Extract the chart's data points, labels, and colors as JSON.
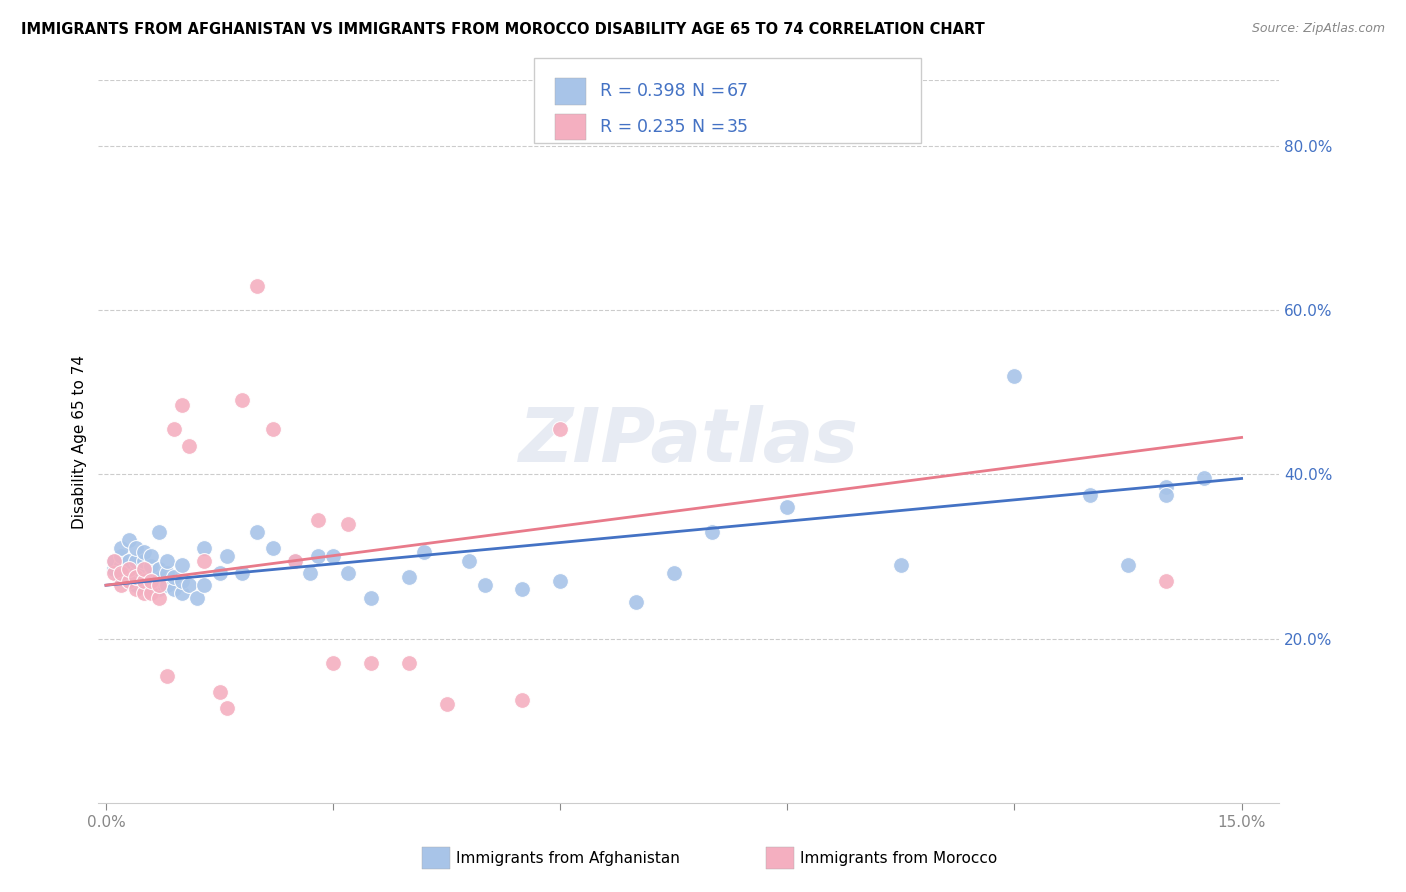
{
  "title": "IMMIGRANTS FROM AFGHANISTAN VS IMMIGRANTS FROM MOROCCO DISABILITY AGE 65 TO 74 CORRELATION CHART",
  "source": "Source: ZipAtlas.com",
  "ylabel": "Disability Age 65 to 74",
  "x_min": 0.0,
  "x_max": 0.15,
  "y_min": 0.0,
  "y_max": 0.88,
  "x_tick_positions": [
    0.0,
    0.03,
    0.06,
    0.09,
    0.12,
    0.15
  ],
  "x_tick_labels": [
    "0.0%",
    "",
    "",
    "",
    "",
    "15.0%"
  ],
  "y_tick_values": [
    0.2,
    0.4,
    0.6,
    0.8
  ],
  "y_tick_labels": [
    "20.0%",
    "40.0%",
    "60.0%",
    "80.0%"
  ],
  "afghanistan_color": "#a8c4e8",
  "morocco_color": "#f4afc0",
  "afghanistan_R": "0.398",
  "afghanistan_N": "67",
  "morocco_R": "0.235",
  "morocco_N": "35",
  "afghanistan_line_color": "#4472c4",
  "morocco_line_color": "#e87a8a",
  "legend_text_color": "#4472c4",
  "legend_labels": [
    "Immigrants from Afghanistan",
    "Immigrants from Morocco"
  ],
  "watermark": "ZIPatlas",
  "afg_line_x0": 0.0,
  "afg_line_y0": 0.265,
  "afg_line_x1": 0.15,
  "afg_line_y1": 0.395,
  "mor_line_x0": 0.0,
  "mor_line_y0": 0.265,
  "mor_line_x1": 0.15,
  "mor_line_y1": 0.445,
  "afghanistan_x": [
    0.001,
    0.001,
    0.002,
    0.002,
    0.002,
    0.002,
    0.003,
    0.003,
    0.003,
    0.003,
    0.004,
    0.004,
    0.004,
    0.004,
    0.005,
    0.005,
    0.005,
    0.005,
    0.005,
    0.006,
    0.006,
    0.006,
    0.006,
    0.007,
    0.007,
    0.007,
    0.007,
    0.008,
    0.008,
    0.008,
    0.009,
    0.009,
    0.01,
    0.01,
    0.01,
    0.011,
    0.012,
    0.013,
    0.013,
    0.015,
    0.016,
    0.018,
    0.02,
    0.022,
    0.025,
    0.027,
    0.028,
    0.03,
    0.032,
    0.035,
    0.04,
    0.042,
    0.048,
    0.05,
    0.055,
    0.06,
    0.07,
    0.075,
    0.08,
    0.09,
    0.105,
    0.12,
    0.13,
    0.135,
    0.14,
    0.14,
    0.145
  ],
  "afghanistan_y": [
    0.285,
    0.295,
    0.275,
    0.29,
    0.3,
    0.31,
    0.27,
    0.28,
    0.295,
    0.32,
    0.265,
    0.28,
    0.295,
    0.31,
    0.265,
    0.272,
    0.285,
    0.295,
    0.305,
    0.265,
    0.275,
    0.288,
    0.3,
    0.26,
    0.272,
    0.285,
    0.33,
    0.265,
    0.28,
    0.295,
    0.26,
    0.275,
    0.255,
    0.27,
    0.29,
    0.265,
    0.25,
    0.265,
    0.31,
    0.28,
    0.3,
    0.28,
    0.33,
    0.31,
    0.295,
    0.28,
    0.3,
    0.3,
    0.28,
    0.25,
    0.275,
    0.305,
    0.295,
    0.265,
    0.26,
    0.27,
    0.245,
    0.28,
    0.33,
    0.36,
    0.29,
    0.52,
    0.375,
    0.29,
    0.385,
    0.375,
    0.395
  ],
  "morocco_x": [
    0.001,
    0.001,
    0.002,
    0.002,
    0.003,
    0.003,
    0.004,
    0.004,
    0.005,
    0.005,
    0.005,
    0.006,
    0.006,
    0.007,
    0.007,
    0.008,
    0.009,
    0.01,
    0.011,
    0.013,
    0.015,
    0.016,
    0.018,
    0.02,
    0.022,
    0.025,
    0.028,
    0.03,
    0.032,
    0.035,
    0.04,
    0.045,
    0.055,
    0.06,
    0.14
  ],
  "morocco_y": [
    0.28,
    0.295,
    0.265,
    0.28,
    0.27,
    0.285,
    0.26,
    0.275,
    0.255,
    0.27,
    0.285,
    0.255,
    0.27,
    0.25,
    0.265,
    0.155,
    0.455,
    0.485,
    0.435,
    0.295,
    0.135,
    0.115,
    0.49,
    0.63,
    0.455,
    0.295,
    0.345,
    0.17,
    0.34,
    0.17,
    0.17,
    0.12,
    0.125,
    0.455,
    0.27
  ]
}
